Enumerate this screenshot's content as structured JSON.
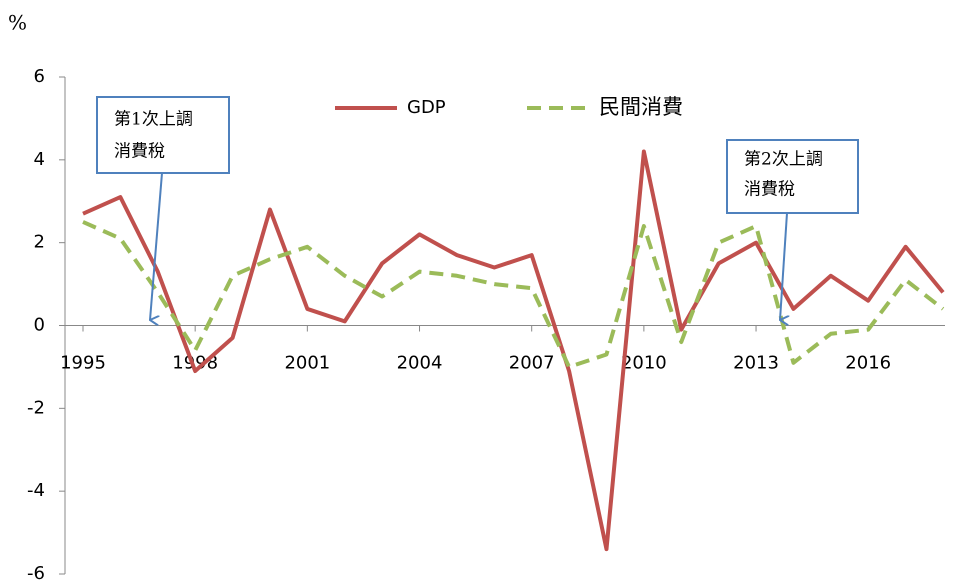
{
  "chart_data": {
    "type": "line",
    "y_unit": "%",
    "x": [
      1995,
      1996,
      1997,
      1998,
      1999,
      2000,
      2001,
      2002,
      2003,
      2004,
      2005,
      2006,
      2007,
      2008,
      2009,
      2010,
      2011,
      2012,
      2013,
      2014,
      2015,
      2016,
      2017,
      2018
    ],
    "series": [
      {
        "name": "GDP",
        "color": "#c0504d",
        "dash": false,
        "values": [
          2.7,
          3.1,
          1.3,
          -1.1,
          -0.3,
          2.8,
          0.4,
          0.1,
          1.5,
          2.2,
          1.7,
          1.4,
          1.7,
          -1.1,
          -5.4,
          4.2,
          -0.1,
          1.5,
          2.0,
          0.4,
          1.2,
          0.6,
          1.9,
          0.8
        ]
      },
      {
        "name": "民間消費",
        "color": "#9bbb59",
        "dash": true,
        "values": [
          2.5,
          2.1,
          0.8,
          -0.6,
          1.2,
          1.6,
          1.9,
          1.2,
          0.7,
          1.3,
          1.2,
          1.0,
          0.9,
          -1.0,
          -0.7,
          2.4,
          -0.4,
          2.0,
          2.4,
          -0.9,
          -0.2,
          -0.1,
          1.1,
          0.4
        ]
      }
    ],
    "xlim": [
      1995,
      2018
    ],
    "xticks": [
      1995,
      1998,
      2001,
      2004,
      2007,
      2010,
      2013,
      2016
    ],
    "ylim": [
      -6,
      6
    ],
    "yticks": [
      -6,
      -4,
      -2,
      0,
      2,
      4,
      6
    ],
    "annotations": [
      {
        "lines": [
          "第1次上調",
          "消費稅"
        ]
      },
      {
        "lines": [
          "第2次上調",
          "消費稅"
        ]
      }
    ]
  }
}
